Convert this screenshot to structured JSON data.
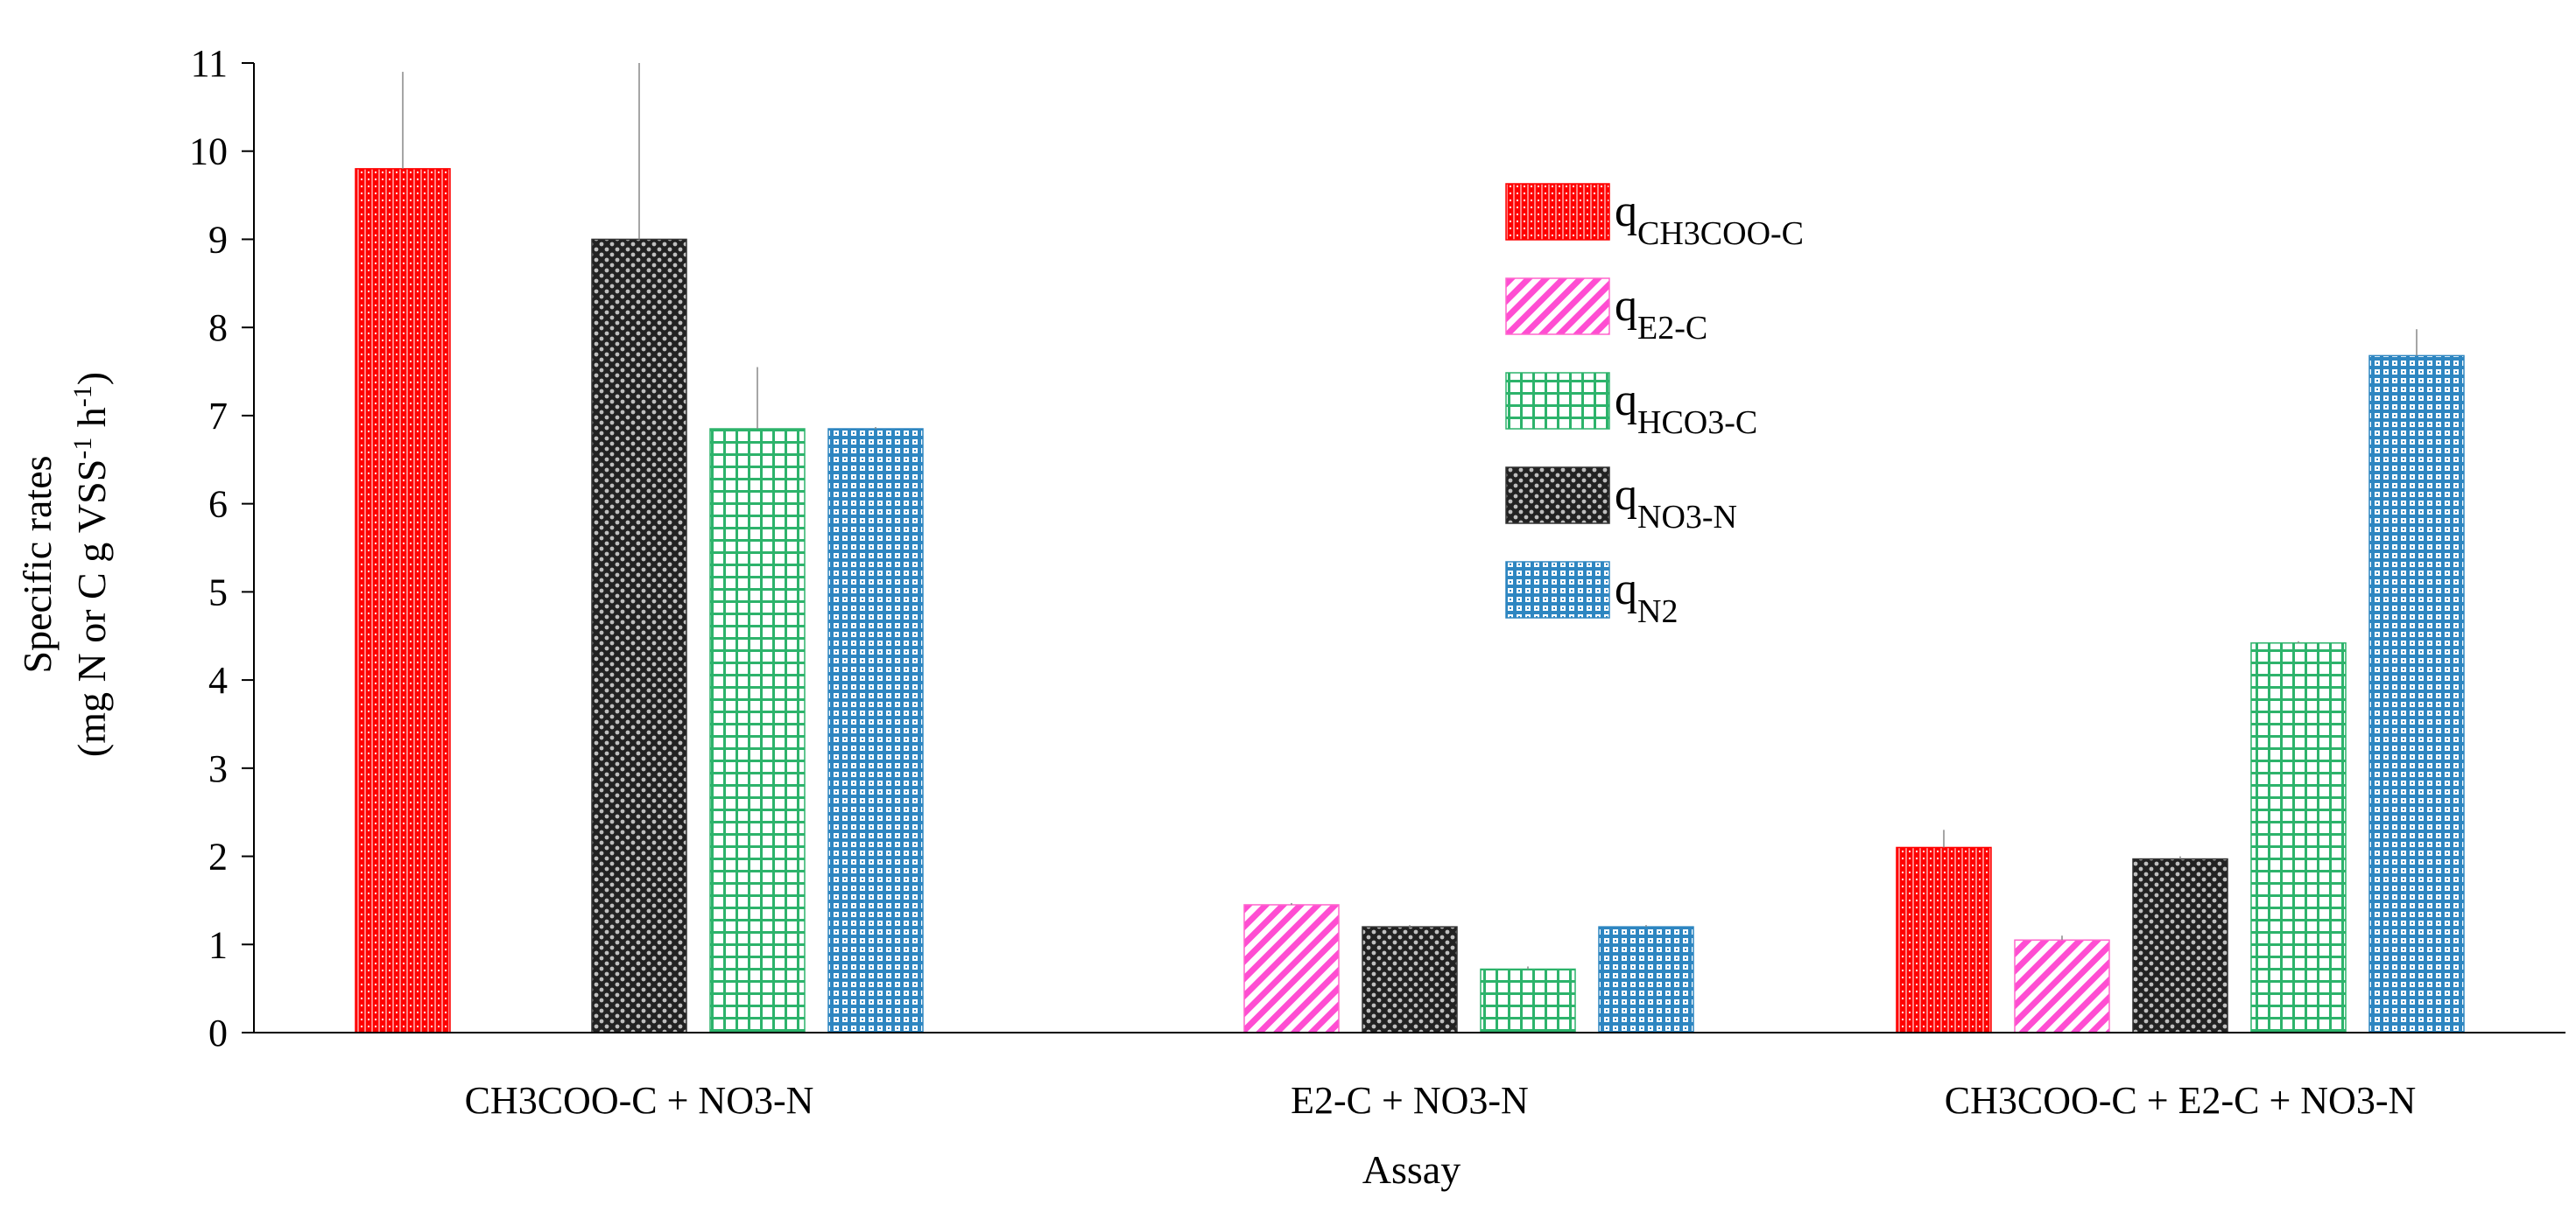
{
  "chart_data": {
    "type": "bar",
    "title": "",
    "xlabel": "Assay",
    "ylabel_line1": "Specific rates",
    "ylabel_line2": {
      "pre": "(mg N or C g VSS",
      "sup1": "-1",
      "mid": " h",
      "sup2": "-1",
      "post": ")"
    },
    "ylim": [
      0,
      11
    ],
    "yticks": [
      0,
      1,
      2,
      3,
      4,
      5,
      6,
      7,
      8,
      9,
      10,
      11
    ],
    "categories": [
      "CH3COO-C + NO3-N",
      "E2-C + NO3-N",
      "CH3COO-C + E2-C + NO3-N"
    ],
    "series": [
      {
        "name": "q",
        "sub": "CH3COO-C",
        "color": "#ff0000",
        "pattern": "red-hatch",
        "values": [
          9.8,
          null,
          2.1
        ],
        "errors": [
          1.1,
          null,
          0.2
        ]
      },
      {
        "name": "q",
        "sub": "E2-C",
        "color": "#ff66cc",
        "pattern": "pink-diag",
        "values": [
          null,
          1.45,
          1.05
        ],
        "errors": [
          null,
          0.02,
          0.05
        ]
      },
      {
        "name": "q",
        "sub": "NO3-N",
        "color": "#333333",
        "pattern": "black-dots",
        "values": [
          9.0,
          1.2,
          1.97
        ],
        "errors": [
          2.0,
          0.02,
          0.03
        ]
      },
      {
        "name": "q",
        "sub": "HCO3-C",
        "color": "#2db36b",
        "pattern": "green-grid",
        "values": [
          6.85,
          0.72,
          4.42
        ],
        "errors": [
          0.7,
          0.03,
          0.02
        ]
      },
      {
        "name": "q",
        "sub": "N2",
        "color": "#2e86c1",
        "pattern": "blue-grid",
        "values": [
          6.85,
          1.2,
          7.68
        ],
        "errors": [
          0.02,
          0.02,
          0.3
        ]
      }
    ],
    "legend": {
      "position": "top-right",
      "order": [
        0,
        1,
        3,
        2,
        4
      ]
    },
    "grid": false
  }
}
